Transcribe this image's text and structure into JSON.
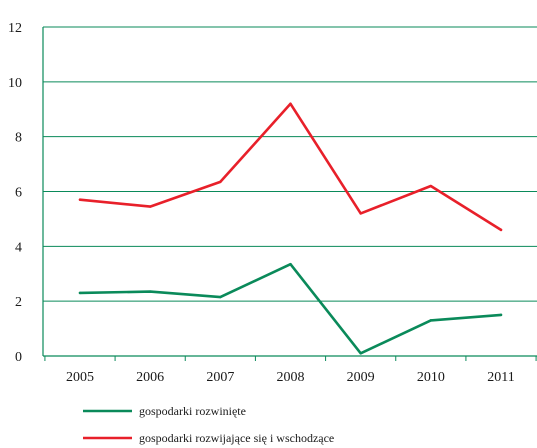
{
  "chart_data": {
    "type": "line",
    "x": [
      "2005",
      "2006",
      "2007",
      "2008",
      "2009",
      "2010",
      "2011"
    ],
    "yticks": [
      "0",
      "2",
      "4",
      "6",
      "8",
      "10",
      "12"
    ],
    "ylim": [
      0,
      12
    ],
    "grid": true,
    "legend_position": "bottom-left",
    "series": [
      {
        "name": "gospodarki rozwinięte",
        "color": "#0a8a5a",
        "values": [
          2.3,
          2.35,
          2.15,
          3.35,
          0.1,
          1.3,
          1.5
        ]
      },
      {
        "name": "gospodarki rozwijające się i wschodzące",
        "color": "#e8202a",
        "values": [
          5.7,
          5.45,
          6.35,
          9.2,
          5.2,
          6.2,
          4.6
        ]
      }
    ]
  }
}
